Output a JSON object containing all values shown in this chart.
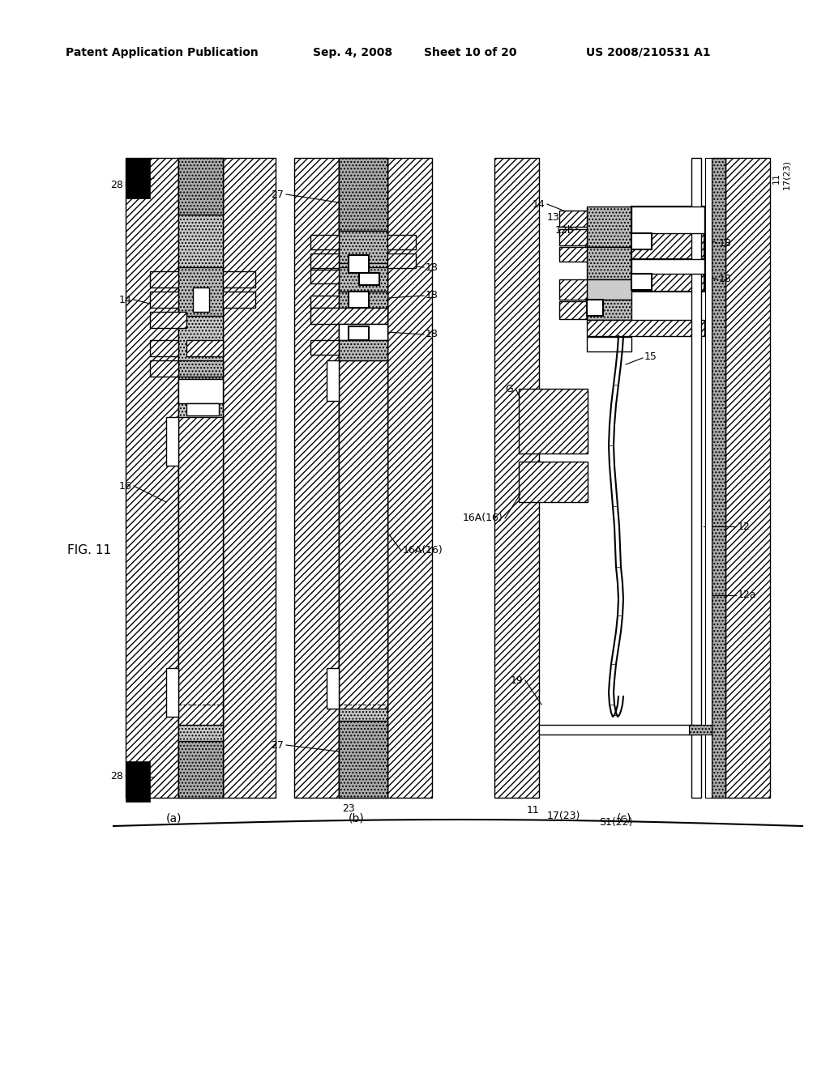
{
  "title_header": "Patent Application Publication",
  "date_str": "Sep. 4, 2008",
  "sheet_str": "Sheet 10 of 20",
  "patent_str": "US 2008/210531 A1",
  "fig_label": "FIG. 11",
  "bg_color": "#ffffff"
}
